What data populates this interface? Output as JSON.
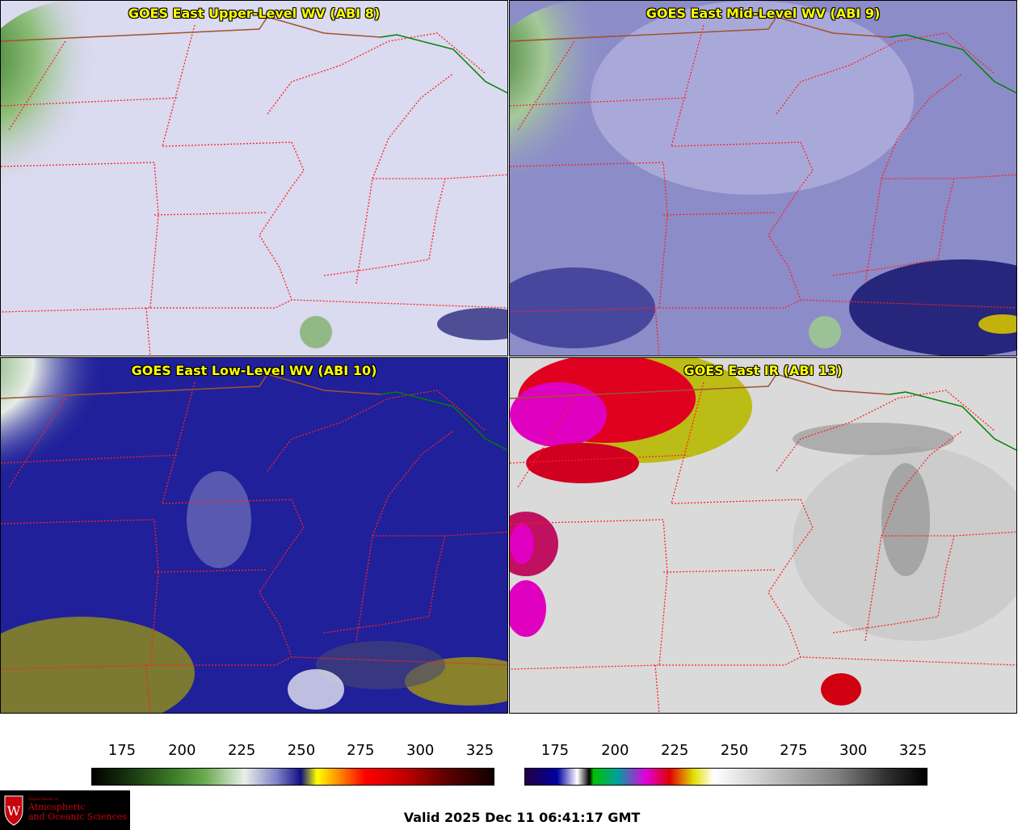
{
  "panels": [
    {
      "title": "GOES East Upper-Level WV (ABI 8)"
    },
    {
      "title": "GOES East Mid-Level WV (ABI 9)"
    },
    {
      "title": "GOES East Low-Level WV (ABI 10)"
    },
    {
      "title": "GOES East IR (ABI 13)"
    }
  ],
  "colorbars": [
    {
      "ticks": [
        "175",
        "200",
        "225",
        "250",
        "275",
        "300",
        "325"
      ]
    },
    {
      "ticks": [
        "175",
        "200",
        "225",
        "250",
        "275",
        "300",
        "325"
      ]
    }
  ],
  "logo": {
    "line1": "Department of",
    "line2": "Atmospheric",
    "line3": "and Oceanic Sciences"
  },
  "valid_text": "Valid 2025 Dec 11 06:41:17 GMT",
  "colors": {
    "title": "#ffff00",
    "state_lines": "#ff2020",
    "border": "#a0522d",
    "canada_line": "#008000"
  }
}
